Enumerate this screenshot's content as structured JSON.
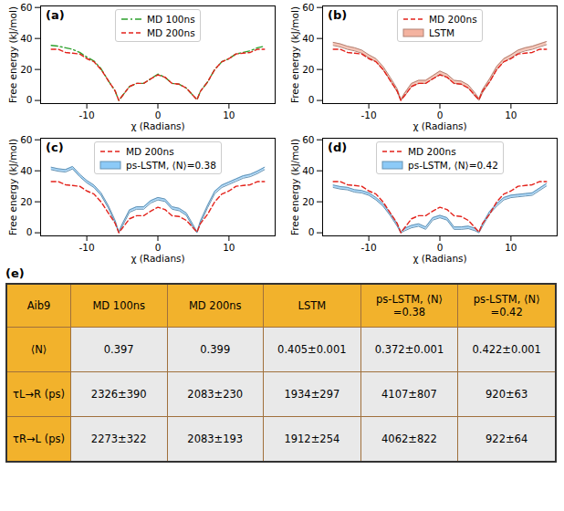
{
  "chart_data": [
    {
      "type": "line",
      "title": "(a)",
      "x_label": "χ (Radians)",
      "y_label": "Free energy (kJ/mol)",
      "xlim": [
        -16.5,
        16.5
      ],
      "ylim": [
        -2,
        61
      ],
      "xticks": [
        -10,
        0,
        10
      ],
      "yticks": [
        0,
        20,
        40,
        60
      ],
      "grid": false,
      "legend": "top",
      "x": [
        -15,
        -14,
        -13,
        -12,
        -11,
        -10,
        -9,
        -8,
        -7,
        -6,
        -5.5,
        -5,
        -4,
        -3,
        -2,
        -1,
        0,
        1,
        2,
        3,
        4,
        5,
        5.5,
        6,
        7,
        8,
        9,
        10,
        11,
        12,
        13,
        14,
        15
      ],
      "series": [
        {
          "name": "MD 100ns",
          "type": "line",
          "color": "#2ca02c",
          "line_style": "dashdot",
          "values": [
            35.5,
            35,
            34,
            33,
            31,
            28,
            25.5,
            20.5,
            13,
            6,
            0,
            3,
            9,
            11,
            11,
            14,
            17,
            15,
            11,
            10.5,
            8,
            3,
            0.5,
            6,
            12,
            20,
            25,
            27,
            30,
            31,
            32,
            34,
            35
          ]
        },
        {
          "name": "MD 200ns",
          "type": "line",
          "color": "#e3221b",
          "line_style": "dashed",
          "values": [
            33,
            33,
            31,
            30.5,
            30,
            27,
            25,
            20,
            13,
            6,
            0,
            3,
            9,
            11,
            11,
            14,
            16.5,
            15,
            11,
            10.5,
            8,
            3,
            0.5,
            6,
            12,
            20,
            25,
            27,
            30,
            30.5,
            31,
            33,
            33
          ]
        }
      ]
    },
    {
      "type": "line",
      "title": "(b)",
      "x_label": "χ (Radians)",
      "y_label": "Free energy (kJ/mol)",
      "xlim": [
        -16.5,
        16.5
      ],
      "ylim": [
        -2,
        61
      ],
      "xticks": [
        -10,
        0,
        10
      ],
      "yticks": [
        0,
        20,
        40,
        60
      ],
      "grid": false,
      "legend": "top",
      "x": [
        -15,
        -14,
        -13,
        -12,
        -11,
        -10,
        -9,
        -8,
        -7,
        -6,
        -5.5,
        -5,
        -4,
        -3,
        -2,
        -1,
        0,
        1,
        2,
        3,
        4,
        5,
        5.5,
        6,
        7,
        8,
        9,
        10,
        11,
        12,
        13,
        14,
        15
      ],
      "series": [
        {
          "name": "MD 200ns",
          "type": "line",
          "color": "#e3221b",
          "line_style": "dashed",
          "values": [
            33,
            33,
            31,
            30.5,
            30,
            27,
            25,
            20,
            13,
            6,
            0,
            3,
            9,
            11,
            11,
            14,
            16.5,
            15,
            11,
            10.5,
            8,
            3,
            0.5,
            6,
            12,
            20,
            25,
            27,
            30,
            30.5,
            31,
            33,
            33
          ]
        },
        {
          "name": "LSTM",
          "type": "band",
          "color": "#f4b3a0",
          "lower": [
            35.5,
            34.5,
            33,
            32,
            30.5,
            27.5,
            25,
            20,
            13,
            5.5,
            0,
            2.5,
            9,
            11,
            11,
            14,
            17,
            15,
            11,
            10.5,
            8,
            2.5,
            0,
            5,
            12,
            20,
            25,
            27.5,
            30.5,
            32,
            33,
            34.5,
            36
          ],
          "upper": [
            37.5,
            36.5,
            35,
            34,
            32.5,
            29.5,
            27,
            22,
            15,
            7.5,
            0.6,
            4.5,
            11,
            13,
            13,
            16,
            19,
            17,
            13,
            12.5,
            10,
            4.5,
            1.2,
            7,
            14,
            22,
            27,
            29.5,
            32.5,
            34,
            35,
            36.5,
            38
          ]
        }
      ]
    },
    {
      "type": "line",
      "title": "(c)",
      "x_label": "χ (Radians)",
      "y_label": "Free energy (kJ/mol)",
      "xlim": [
        -16.5,
        16.5
      ],
      "ylim": [
        -2,
        61
      ],
      "xticks": [
        -10,
        0,
        10
      ],
      "yticks": [
        0,
        20,
        40,
        60
      ],
      "grid": false,
      "legend": "top",
      "x": [
        -15,
        -14,
        -13,
        -12,
        -11,
        -10,
        -9,
        -8,
        -7,
        -6,
        -5.5,
        -5,
        -4,
        -3,
        -2,
        -1,
        0,
        1,
        2,
        3,
        4,
        5,
        5.5,
        6,
        7,
        8,
        9,
        10,
        11,
        12,
        13,
        14,
        15
      ],
      "series": [
        {
          "name": "MD 200ns",
          "type": "line",
          "color": "#e3221b",
          "line_style": "dashed",
          "values": [
            33,
            33,
            31,
            30.5,
            30,
            27,
            25,
            20,
            13,
            6,
            0,
            3,
            9,
            11,
            11,
            14,
            16.5,
            15,
            11,
            10.5,
            8,
            3,
            0.5,
            6,
            12,
            20,
            25,
            27,
            30,
            30.5,
            31,
            33,
            33
          ]
        },
        {
          "name": "ps-LSTM, ⟨N⟩=0.38",
          "type": "band",
          "color": "#8ccaf7",
          "lower": [
            40.7,
            39.7,
            39.2,
            41.2,
            36.2,
            32.2,
            29.2,
            24.2,
            16.2,
            6.2,
            0,
            4.2,
            13.2,
            15.2,
            15.2,
            19.2,
            21.2,
            20.2,
            15.2,
            14.2,
            11.2,
            3.2,
            0,
            6.2,
            16.2,
            25.2,
            29.2,
            31.2,
            33.2,
            35.2,
            36.2,
            38.2,
            40.7
          ],
          "upper": [
            42.3,
            41.3,
            40.8,
            42.8,
            37.8,
            33.8,
            30.8,
            25.8,
            17.8,
            7.8,
            0.6,
            5.8,
            14.8,
            16.8,
            16.8,
            20.8,
            22.8,
            21.8,
            16.8,
            15.8,
            12.8,
            4.8,
            0.6,
            7.8,
            17.8,
            26.8,
            30.8,
            32.8,
            34.8,
            36.8,
            37.8,
            39.8,
            42.3
          ]
        }
      ]
    },
    {
      "type": "line",
      "title": "(d)",
      "x_label": "χ (Radians)",
      "y_label": "Free energy (kJ/mol)",
      "xlim": [
        -16.5,
        16.5
      ],
      "ylim": [
        -2,
        61
      ],
      "xticks": [
        -10,
        0,
        10
      ],
      "yticks": [
        0,
        20,
        40,
        60
      ],
      "grid": false,
      "legend": "top",
      "x": [
        -15,
        -14,
        -13,
        -12,
        -11,
        -10,
        -9,
        -8,
        -7,
        -6,
        -5.5,
        -5,
        -4,
        -3,
        -2,
        -1,
        0,
        1,
        2,
        3,
        4,
        5,
        5.5,
        6,
        7,
        8,
        9,
        10,
        11,
        12,
        13,
        14,
        15
      ],
      "series": [
        {
          "name": "MD 200ns",
          "type": "line",
          "color": "#e3221b",
          "line_style": "dashed",
          "values": [
            33,
            33,
            31,
            30.5,
            30,
            27,
            25,
            20,
            13,
            6,
            0,
            3,
            9,
            11,
            11,
            14,
            16.5,
            15,
            11,
            10.5,
            8,
            3,
            0.5,
            6,
            12,
            20,
            25,
            27,
            30,
            30.5,
            31,
            33,
            33
          ]
        },
        {
          "name": "ps-LSTM, ⟨N⟩=0.42",
          "type": "band",
          "color": "#8ccaf7",
          "lower": [
            29.2,
            28.2,
            27.7,
            26.2,
            25.7,
            24.2,
            21.2,
            17.2,
            11.2,
            4.2,
            0,
            1.2,
            3.2,
            4.2,
            2.2,
            8.2,
            9.7,
            8.2,
            2.2,
            2.2,
            2.7,
            1.2,
            0,
            4.2,
            12.2,
            17.2,
            21.2,
            22.7,
            23.2,
            23.7,
            24.2,
            27.2,
            30.2
          ],
          "upper": [
            30.8,
            29.8,
            29.3,
            27.8,
            27.3,
            25.8,
            22.8,
            18.8,
            12.8,
            5.8,
            0.6,
            2.8,
            4.8,
            5.8,
            3.8,
            9.8,
            11.3,
            9.8,
            3.8,
            3.8,
            4.3,
            2.8,
            0.6,
            5.8,
            13.8,
            18.8,
            22.8,
            24.3,
            24.8,
            25.3,
            25.8,
            28.8,
            31.8
          ]
        }
      ]
    }
  ],
  "table": {
    "label": "(e)",
    "header": [
      "Aib9",
      "MD 100ns",
      "MD 200ns",
      "LSTM",
      "ps-LSTM, ⟨N⟩=0.38",
      "ps-LSTM, ⟨N⟩=0.42"
    ],
    "rows": [
      [
        "⟨N⟩",
        "0.397",
        "0.399",
        "0.405±0.001",
        "0.372±0.001",
        "0.422±0.001"
      ],
      [
        "τL→R (ps)",
        "2326±390",
        "2083±230",
        "1934±297",
        "4107±807",
        "920±63"
      ],
      [
        "τR→L (ps)",
        "2273±322",
        "2083±193",
        "1912±254",
        "4062±822",
        "922±64"
      ]
    ]
  }
}
